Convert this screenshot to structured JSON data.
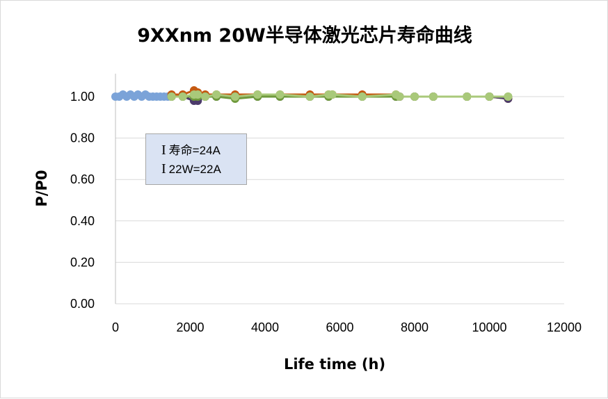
{
  "chart_data": {
    "type": "line",
    "title": "9XXnm 20W半导体激光芯片寿命曲线",
    "xlabel": "Life time  (h)",
    "ylabel": "P/P0",
    "xlim": [
      0,
      12000
    ],
    "ylim": [
      0,
      1.1
    ],
    "x_ticks": [
      "0",
      "2000",
      "4000",
      "6000",
      "8000",
      "10000",
      "12000"
    ],
    "y_ticks": [
      "0.00",
      "0.20",
      "0.40",
      "0.60",
      "0.80",
      "1.00"
    ],
    "grid": "horizontal",
    "annotation": [
      "寿命=24A",
      "22W=22A"
    ],
    "annotation_symbol": "I",
    "series": [
      {
        "color": "#7ba3d8",
        "x": [
          0,
          100,
          200,
          300,
          400,
          500,
          600,
          700,
          800,
          900,
          1000,
          1100,
          1200,
          1300,
          1400
        ],
        "y": [
          1.0,
          1.0,
          1.01,
          1.0,
          1.01,
          1.0,
          1.01,
          1.0,
          1.01,
          1.0,
          1.0,
          1.0,
          1.0,
          1.0,
          1.0
        ]
      },
      {
        "color": "#c55a11",
        "x": [
          1500,
          1800,
          2100,
          2200,
          2400,
          2700,
          3200,
          3800,
          4400,
          5200,
          5700,
          5800,
          6600,
          7500,
          7600,
          8000,
          8500,
          9400,
          10000,
          10500
        ],
        "y": [
          1.01,
          1.01,
          1.03,
          1.02,
          1.01,
          1.01,
          1.01,
          1.01,
          1.01,
          1.01,
          1.01,
          1.01,
          1.01,
          1.01,
          1.0,
          1.0,
          1.0,
          1.0,
          1.0,
          0.99
        ]
      },
      {
        "color": "#4b3a6b",
        "x": [
          1500,
          1800,
          2100,
          2200,
          2400,
          2700,
          3200,
          3800,
          4400,
          5200,
          5700,
          6600,
          7500,
          7600,
          8000,
          8500,
          9400,
          10000,
          10500
        ],
        "y": [
          1.0,
          1.0,
          0.98,
          0.98,
          1.0,
          1.0,
          1.0,
          1.0,
          1.0,
          1.0,
          1.0,
          1.0,
          1.0,
          1.0,
          1.0,
          1.0,
          1.0,
          1.0,
          0.99
        ]
      },
      {
        "color": "#6f9a3c",
        "x": [
          1500,
          1800,
          2100,
          2200,
          2400,
          2700,
          3200,
          3800,
          4400,
          5200,
          5700,
          6600,
          7500,
          8000,
          8500,
          9400,
          10000,
          10500
        ],
        "y": [
          1.0,
          1.0,
          1.0,
          1.0,
          1.0,
          1.0,
          0.99,
          1.0,
          1.0,
          1.0,
          1.0,
          1.0,
          1.0,
          1.0,
          1.0,
          1.0,
          1.0,
          1.0
        ]
      },
      {
        "color": "#a9c97a",
        "x": [
          1500,
          1800,
          2100,
          2200,
          2400,
          2700,
          3200,
          3800,
          4400,
          5200,
          5700,
          5800,
          6600,
          7500,
          7600,
          8000,
          8500,
          9400,
          10000,
          10500
        ],
        "y": [
          1.0,
          1.0,
          1.01,
          1.01,
          1.0,
          1.01,
          1.0,
          1.01,
          1.01,
          1.0,
          1.01,
          1.01,
          1.0,
          1.01,
          1.0,
          1.0,
          1.0,
          1.0,
          1.0,
          1.0
        ]
      }
    ]
  }
}
